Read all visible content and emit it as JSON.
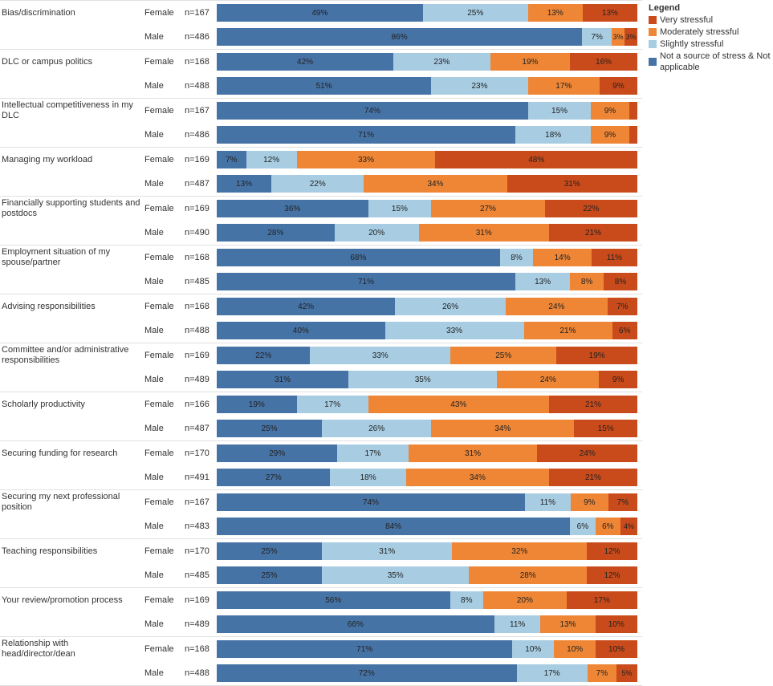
{
  "colors": {
    "not_source": "#4673a6",
    "slightly": "#a8cde3",
    "moderately": "#ee8636",
    "very": "#c94b1b",
    "border": "#e0e0e0",
    "text": "#333333"
  },
  "legend": {
    "title": "Legend",
    "items": [
      {
        "key": "very",
        "label": "Very stressful"
      },
      {
        "key": "moderately",
        "label": "Moderately stressful"
      },
      {
        "key": "slightly",
        "label": "Slightly stressful"
      },
      {
        "key": "not_source",
        "label": "Not a source of stress & Not applicable"
      }
    ]
  },
  "segment_order": [
    "not_source",
    "slightly",
    "moderately",
    "very"
  ],
  "categories": [
    {
      "label": "Bias/discrimination",
      "rows": [
        {
          "gender": "Female",
          "n": "n=167",
          "values": {
            "not_source": 49,
            "slightly": 25,
            "moderately": 13,
            "very": 13
          }
        },
        {
          "gender": "Male",
          "n": "n=486",
          "values": {
            "not_source": 86,
            "slightly": 7,
            "moderately": 3,
            "very": 3
          }
        }
      ]
    },
    {
      "label": "DLC or campus politics",
      "rows": [
        {
          "gender": "Female",
          "n": "n=168",
          "values": {
            "not_source": 42,
            "slightly": 23,
            "moderately": 19,
            "very": 16
          }
        },
        {
          "gender": "Male",
          "n": "n=488",
          "values": {
            "not_source": 51,
            "slightly": 23,
            "moderately": 17,
            "very": 9
          }
        }
      ]
    },
    {
      "label": "Intellectual competitiveness in my DLC",
      "rows": [
        {
          "gender": "Female",
          "n": "n=167",
          "values": {
            "not_source": 74,
            "slightly": 15,
            "moderately": 9,
            "very": 2
          }
        },
        {
          "gender": "Male",
          "n": "n=486",
          "values": {
            "not_source": 71,
            "slightly": 18,
            "moderately": 9,
            "very": 2
          }
        }
      ]
    },
    {
      "label": "Managing my workload",
      "rows": [
        {
          "gender": "Female",
          "n": "n=169",
          "values": {
            "not_source": 7,
            "slightly": 12,
            "moderately": 33,
            "very": 48
          }
        },
        {
          "gender": "Male",
          "n": "n=487",
          "values": {
            "not_source": 13,
            "slightly": 22,
            "moderately": 34,
            "very": 31
          }
        }
      ]
    },
    {
      "label": "Financially supporting students and postdocs",
      "rows": [
        {
          "gender": "Female",
          "n": "n=169",
          "values": {
            "not_source": 36,
            "slightly": 15,
            "moderately": 27,
            "very": 22
          }
        },
        {
          "gender": "Male",
          "n": "n=490",
          "values": {
            "not_source": 28,
            "slightly": 20,
            "moderately": 31,
            "very": 21
          }
        }
      ]
    },
    {
      "label": "Employment situation of my spouse/partner",
      "rows": [
        {
          "gender": "Female",
          "n": "n=168",
          "values": {
            "not_source": 68,
            "slightly": 8,
            "moderately": 14,
            "very": 11
          }
        },
        {
          "gender": "Male",
          "n": "n=485",
          "values": {
            "not_source": 71,
            "slightly": 13,
            "moderately": 8,
            "very": 8
          }
        }
      ]
    },
    {
      "label": "Advising responsibilities",
      "rows": [
        {
          "gender": "Female",
          "n": "n=168",
          "values": {
            "not_source": 42,
            "slightly": 26,
            "moderately": 24,
            "very": 7
          }
        },
        {
          "gender": "Male",
          "n": "n=488",
          "values": {
            "not_source": 40,
            "slightly": 33,
            "moderately": 21,
            "very": 6
          }
        }
      ]
    },
    {
      "label": "Committee and/or administrative responsibilities",
      "rows": [
        {
          "gender": "Female",
          "n": "n=169",
          "values": {
            "not_source": 22,
            "slightly": 33,
            "moderately": 25,
            "very": 19
          }
        },
        {
          "gender": "Male",
          "n": "n=489",
          "values": {
            "not_source": 31,
            "slightly": 35,
            "moderately": 24,
            "very": 9
          }
        }
      ]
    },
    {
      "label": "Scholarly productivity",
      "rows": [
        {
          "gender": "Female",
          "n": "n=166",
          "values": {
            "not_source": 19,
            "slightly": 17,
            "moderately": 43,
            "very": 21
          }
        },
        {
          "gender": "Male",
          "n": "n=487",
          "values": {
            "not_source": 25,
            "slightly": 26,
            "moderately": 34,
            "very": 15
          }
        }
      ]
    },
    {
      "label": "Securing funding for research",
      "rows": [
        {
          "gender": "Female",
          "n": "n=170",
          "values": {
            "not_source": 29,
            "slightly": 17,
            "moderately": 31,
            "very": 24
          }
        },
        {
          "gender": "Male",
          "n": "n=491",
          "values": {
            "not_source": 27,
            "slightly": 18,
            "moderately": 34,
            "very": 21
          }
        }
      ]
    },
    {
      "label": "Securing my next professional position",
      "rows": [
        {
          "gender": "Female",
          "n": "n=167",
          "values": {
            "not_source": 74,
            "slightly": 11,
            "moderately": 9,
            "very": 7
          }
        },
        {
          "gender": "Male",
          "n": "n=483",
          "values": {
            "not_source": 84,
            "slightly": 6,
            "moderately": 6,
            "very": 4
          }
        }
      ]
    },
    {
      "label": "Teaching responsibilities",
      "rows": [
        {
          "gender": "Female",
          "n": "n=170",
          "values": {
            "not_source": 25,
            "slightly": 31,
            "moderately": 32,
            "very": 12
          }
        },
        {
          "gender": "Male",
          "n": "n=485",
          "values": {
            "not_source": 25,
            "slightly": 35,
            "moderately": 28,
            "very": 12
          }
        }
      ]
    },
    {
      "label": "Your review/promotion process",
      "rows": [
        {
          "gender": "Female",
          "n": "n=169",
          "values": {
            "not_source": 56,
            "slightly": 8,
            "moderately": 20,
            "very": 17
          }
        },
        {
          "gender": "Male",
          "n": "n=489",
          "values": {
            "not_source": 66,
            "slightly": 11,
            "moderately": 13,
            "very": 10
          }
        }
      ]
    },
    {
      "label": "Relationship with head/director/dean",
      "rows": [
        {
          "gender": "Female",
          "n": "n=168",
          "values": {
            "not_source": 71,
            "slightly": 10,
            "moderately": 10,
            "very": 10
          }
        },
        {
          "gender": "Male",
          "n": "n=488",
          "values": {
            "not_source": 72,
            "slightly": 17,
            "moderately": 7,
            "very": 5
          }
        }
      ]
    }
  ],
  "label_hide_below_pct": 3
}
